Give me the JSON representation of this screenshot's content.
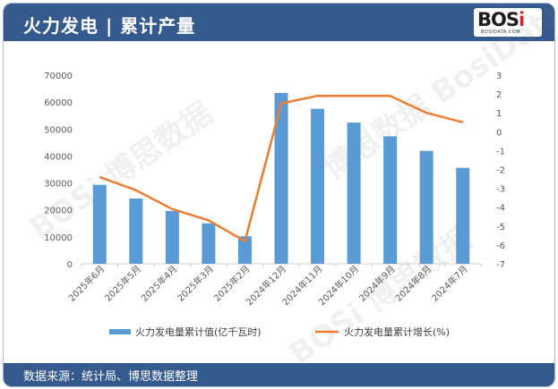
{
  "header": {
    "title": "火力发电 | 累计产量"
  },
  "logo": {
    "mark": "BOSi",
    "sub": "BOSIDATA.COM"
  },
  "footer": {
    "source": "数据来源：统计局、博思数据整理"
  },
  "colors": {
    "header_bg": "#355a8e",
    "bar": "#5b9bd5",
    "line": "#ed7d31"
  },
  "chart_data": {
    "type": "bar+line",
    "categories": [
      "2025年6月",
      "2025年5月",
      "2025年4月",
      "2025年3月",
      "2025年2月",
      "2024年12月",
      "2024年11月",
      "2024年10月",
      "2024年9月",
      "2024年8月",
      "2024年7月"
    ],
    "series": [
      {
        "name": "火力发电量累计值(亿千瓦时)",
        "type": "bar",
        "axis": "left",
        "values": [
          29300,
          24200,
          19600,
          15000,
          10200,
          63400,
          57500,
          52400,
          47300,
          41900,
          35600
        ]
      },
      {
        "name": "火力发电量累计增长(%)",
        "type": "line",
        "axis": "right",
        "values": [
          -2.4,
          -3.1,
          -4.1,
          -4.7,
          -5.8,
          1.5,
          1.9,
          1.9,
          1.9,
          1.0,
          0.5
        ]
      }
    ],
    "y_left": {
      "min": 0,
      "max": 70000,
      "ticks": [
        0,
        10000,
        20000,
        30000,
        40000,
        50000,
        60000,
        70000
      ]
    },
    "y_right": {
      "min": -7,
      "max": 3,
      "ticks": [
        3,
        2,
        1,
        0,
        -1,
        -2,
        -3,
        -4,
        -5,
        -6,
        -7
      ]
    },
    "grid": false,
    "legend": "bottom"
  }
}
